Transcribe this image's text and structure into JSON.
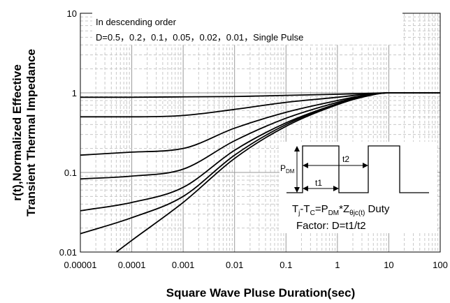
{
  "chart_data": {
    "type": "line",
    "x_scale": "log",
    "y_scale": "log",
    "xlim": [
      1e-05,
      100
    ],
    "ylim": [
      0.01,
      10
    ],
    "grid": true,
    "xlabel": "Square Wave Pluse Duration(sec)",
    "ylabel_line1": "r(t),Normalized Effective",
    "ylabel_line2": "Transient Thermal Impedance",
    "x_ticks": [
      "0.00001",
      "0.0001",
      "0.001",
      "0.01",
      "0.1",
      "1",
      "10",
      "100"
    ],
    "y_ticks": [
      "0.01",
      "0.1",
      "1",
      "10"
    ],
    "annotation_line1": "In descending order",
    "annotation_line2": "D=0.5，0.2，0.1，0.05，0.02，0.01，Single Pulse",
    "series": [
      {
        "x": [
          1e-05,
          0.0001,
          0.001,
          0.01,
          0.1,
          1,
          3,
          10,
          15,
          100
        ],
        "y": [
          0.88,
          0.88,
          0.89,
          0.9,
          0.93,
          0.96,
          0.98,
          1.0,
          1.0,
          1.0
        ]
      },
      {
        "x": [
          1e-05,
          0.0001,
          0.001,
          0.01,
          0.1,
          1,
          3,
          10,
          15,
          100
        ],
        "y": [
          0.5,
          0.5,
          0.52,
          0.62,
          0.76,
          0.88,
          0.95,
          1.0,
          1.0,
          1.0
        ]
      },
      {
        "x": [
          1e-05,
          0.0001,
          0.001,
          0.01,
          0.1,
          1,
          3,
          10,
          15,
          100
        ],
        "y": [
          0.165,
          0.18,
          0.2,
          0.36,
          0.57,
          0.8,
          0.92,
          1.0,
          1.0,
          1.0
        ]
      },
      {
        "x": [
          1e-05,
          0.0001,
          0.001,
          0.01,
          0.1,
          1,
          3,
          10,
          15,
          100
        ],
        "y": [
          0.083,
          0.09,
          0.11,
          0.25,
          0.48,
          0.76,
          0.9,
          1.0,
          1.0,
          1.0
        ]
      },
      {
        "x": [
          1e-05,
          0.0001,
          0.001,
          0.01,
          0.1,
          1,
          3,
          10,
          15,
          100
        ],
        "y": [
          0.033,
          0.042,
          0.065,
          0.19,
          0.42,
          0.73,
          0.89,
          1.0,
          1.0,
          1.0
        ]
      },
      {
        "x": [
          1e-05,
          0.0001,
          0.001,
          0.01,
          0.1,
          1,
          3,
          10,
          15,
          100
        ],
        "y": [
          0.017,
          0.027,
          0.05,
          0.165,
          0.4,
          0.72,
          0.89,
          1.0,
          1.0,
          1.0
        ]
      },
      {
        "x": [
          5e-05,
          0.0001,
          0.001,
          0.01,
          0.1,
          1,
          3,
          10,
          15,
          100
        ],
        "y": [
          0.01,
          0.014,
          0.042,
          0.15,
          0.38,
          0.71,
          0.88,
          1.0,
          1.0,
          1.0
        ]
      }
    ],
    "inset": {
      "pdm_label": "P",
      "pdm_sub": "DM",
      "t1_label": "t1",
      "t2_label": "t2",
      "formula_tj": "T",
      "formula_j": "j",
      "formula_mid": "-T",
      "formula_c": "C",
      "formula_eq": "=P",
      "formula_dm": "DM",
      "formula_z": "*Z",
      "formula_theta": "θjc(t)",
      "formula_duty": " Duty",
      "formula_line2": "Factor: D=t1/t2"
    }
  }
}
